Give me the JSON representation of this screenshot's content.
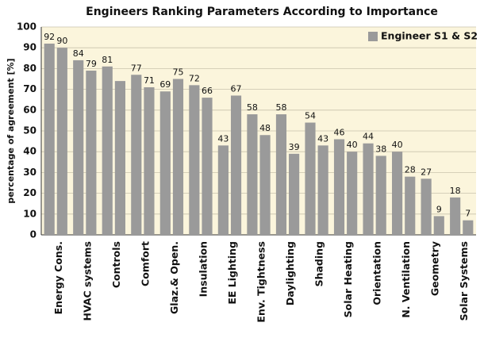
{
  "chart_data": {
    "type": "bar",
    "title": "Engineers Ranking Parameters According to Importance",
    "y_label": "percentage of agreement [%]",
    "categories": [
      "Energy Cons.",
      "HVAC systems",
      "Controls",
      "Comfort",
      "Glaz.& Open.",
      "Insulation",
      "EE Lighting",
      "Env. Tightness",
      "Daylighting",
      "Shading",
      "Solar Heating",
      "Orientation",
      "N. Ventilation",
      "Geometry",
      "Solar Systems"
    ],
    "series": [
      {
        "name": "Engineer S1 & S2",
        "color": "#9a9a9a",
        "values": [
          92,
          84,
          81,
          77,
          69,
          72,
          43,
          58,
          58,
          54,
          46,
          44,
          40,
          27,
          18
        ]
      },
      {
        "color": "#9a9a9a",
        "values": [
          90,
          79,
          74,
          71,
          75,
          66,
          67,
          48,
          39,
          43,
          40,
          38,
          28,
          9,
          7
        ],
        "value_labels": [
          90,
          79,
          null,
          71,
          75,
          66,
          67,
          48,
          39,
          43,
          40,
          38,
          28,
          9,
          7
        ]
      }
    ],
    "ylim": [
      0,
      100
    ],
    "yticks": [
      0,
      10,
      20,
      30,
      40,
      50,
      60,
      70,
      80,
      90,
      100
    ],
    "grid": true,
    "legend": "top-right"
  }
}
